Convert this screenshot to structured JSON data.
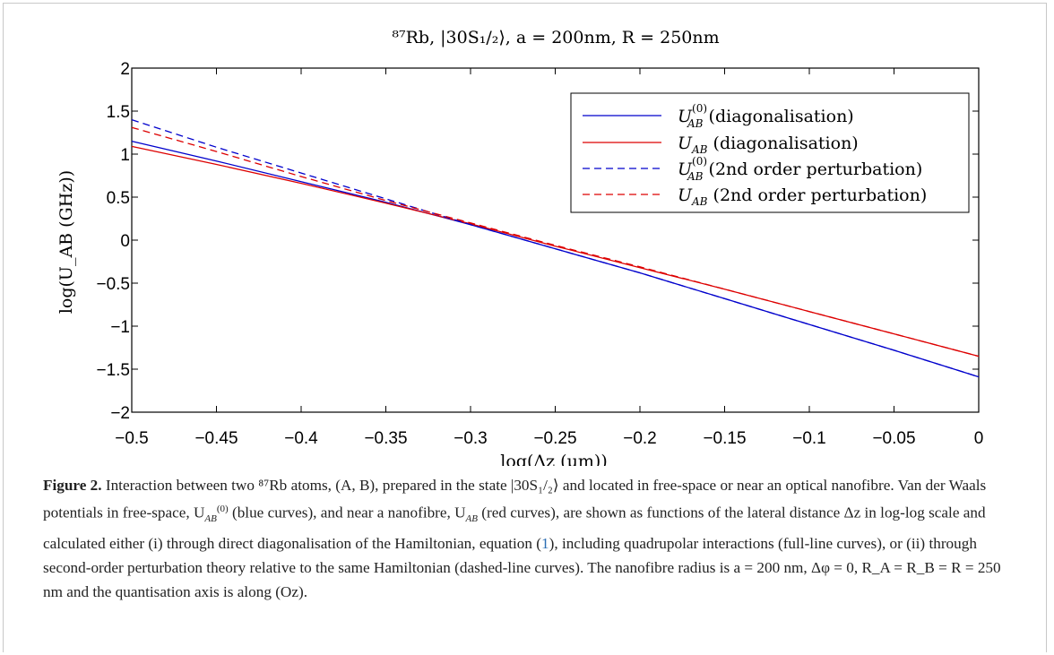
{
  "chart_data": {
    "type": "line",
    "title": "⁸⁷Rb, |30S₁/₂⟩, a = 200nm, R = 250nm",
    "xlabel": "log(Δz (μm))",
    "ylabel": "log(U_AB (GHz))",
    "xlim": [
      -0.5,
      0
    ],
    "ylim": [
      -2,
      2
    ],
    "x_ticks": [
      "−0.5",
      "−0.45",
      "−0.4",
      "−0.35",
      "−0.3",
      "−0.25",
      "−0.2",
      "−0.15",
      "−0.1",
      "−0.05",
      "0"
    ],
    "y_ticks": [
      "−2",
      "−1.5",
      "−1",
      "−0.5",
      "0",
      "0.5",
      "1",
      "1.5",
      "2"
    ],
    "grid": false,
    "legend_position": "top-right",
    "series": [
      {
        "name": "U_AB^(0) (diagonalisation)",
        "color": "#0000cc",
        "dash": "solid",
        "x": [
          -0.5,
          -0.45,
          -0.4,
          -0.35,
          -0.3,
          -0.25,
          -0.2,
          -0.15,
          -0.1,
          -0.05,
          0
        ],
        "y": [
          1.15,
          0.92,
          0.68,
          0.44,
          0.18,
          -0.1,
          -0.38,
          -0.68,
          -0.98,
          -1.28,
          -1.59
        ]
      },
      {
        "name": "U_AB (diagonalisation)",
        "color": "#dd0000",
        "dash": "solid",
        "x": [
          -0.5,
          -0.45,
          -0.4,
          -0.35,
          -0.3,
          -0.25,
          -0.2,
          -0.15,
          -0.1,
          -0.05,
          0
        ],
        "y": [
          1.09,
          0.88,
          0.66,
          0.43,
          0.19,
          -0.07,
          -0.32,
          -0.57,
          -0.83,
          -1.09,
          -1.35
        ]
      },
      {
        "name": "U_AB^(0) (2nd order perturbation)",
        "color": "#0000cc",
        "dash": "dashed",
        "x": [
          -0.5,
          -0.45,
          -0.4,
          -0.35,
          -0.3,
          -0.25,
          -0.2,
          -0.15,
          -0.1,
          -0.05,
          0
        ],
        "y": [
          1.4,
          1.08,
          0.78,
          0.48,
          0.18,
          -0.1,
          -0.38,
          -0.68,
          -0.98,
          -1.28,
          -1.59
        ]
      },
      {
        "name": "U_AB (2nd order perturbation)",
        "color": "#dd0000",
        "dash": "dashed",
        "x": [
          -0.5,
          -0.45,
          -0.4,
          -0.35,
          -0.3,
          -0.25,
          -0.2,
          -0.15,
          -0.1,
          -0.05,
          0
        ],
        "y": [
          1.31,
          1.03,
          0.74,
          0.46,
          0.2,
          -0.06,
          -0.31,
          -0.57,
          -0.83,
          -1.09,
          -1.35
        ]
      }
    ],
    "legend_entries": [
      {
        "base": "U",
        "sub": "AB",
        "sup": "(0)",
        "label": "(diagonalisation)"
      },
      {
        "base": "U",
        "sub": "AB",
        "sup": "",
        "label": "(diagonalisation)"
      },
      {
        "base": "U",
        "sub": "AB",
        "sup": "(0)",
        "label": "(2nd order perturbation)"
      },
      {
        "base": "U",
        "sub": "AB",
        "sup": "",
        "label": "(2nd order perturbation)"
      }
    ]
  },
  "caption": {
    "label": "Figure 2.",
    "text_1": " Interaction between two ⁸⁷Rb atoms, (A, B), prepared in the state |30S₁/₂⟩ and located in free-space or near an optical nanofibre. Van der Waals potentials in free-space, U",
    "sym_1_sub": "AB",
    "sym_1_sup": "(0)",
    "text_2": " (blue curves), and near a nanofibre, U",
    "sym_2_sub": "AB",
    "text_3": " (red curves), are shown as functions of the lateral distance Δz in log-log scale and calculated either (i) through direct diagonalisation of the Hamiltonian, equation (",
    "ref": "1",
    "text_4": "), including quadrupolar interactions (full-line curves), or (ii) through second-order perturbation theory relative to the same Hamiltonian (dashed-line curves). The nanofibre radius is a = 200 nm, Δφ = 0, R_A = R_B = R = 250 nm and the quantisation axis is along (Oz)."
  }
}
